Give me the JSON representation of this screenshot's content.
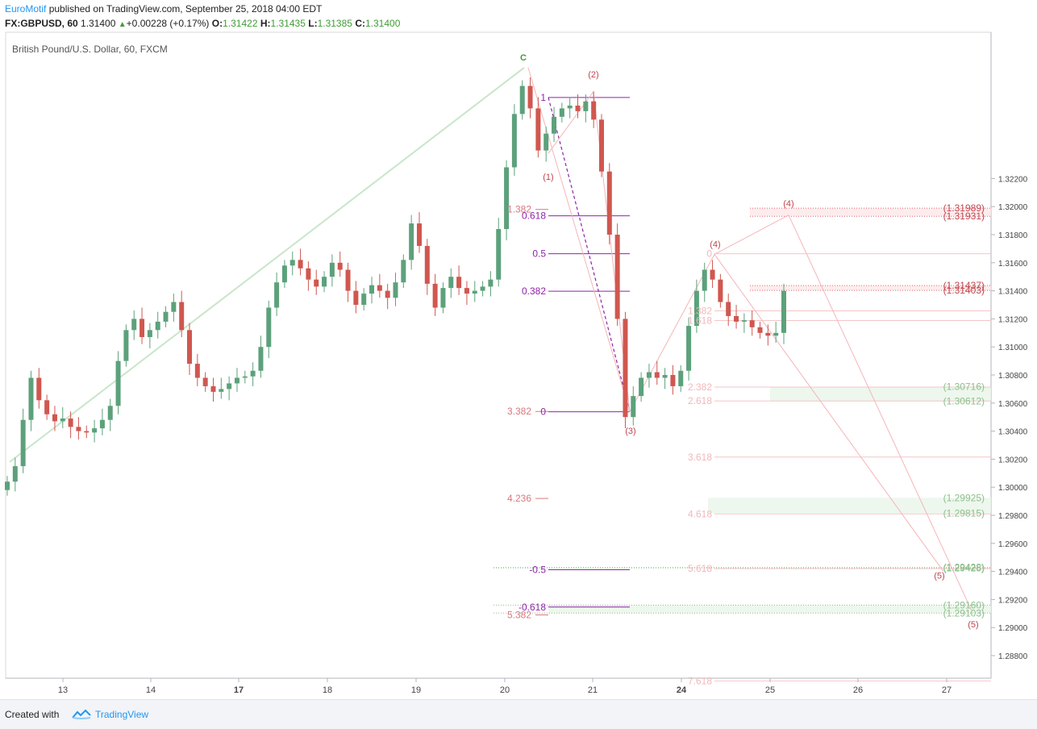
{
  "header": {
    "publisher": "EuroMotif",
    "published_text": "published on TradingView.com, September 25, 2018 04:00 EDT",
    "symbol": "FX:GBPUSD, 60",
    "last_price": "1.31400",
    "change": "+0.00228 (+0.17%)",
    "o_label": "O:",
    "open": "1.31422",
    "h_label": "H:",
    "high": "1.31435",
    "l_label": "L:",
    "low": "1.31385",
    "c_label": "C:",
    "close": "1.31400"
  },
  "footer": {
    "created_with": "Created with",
    "brand": "TradingView"
  },
  "colors": {
    "up": "#5ca17b",
    "down": "#d0574f",
    "fib_purple": "#8e24aa",
    "fib_pink": "#d8787e",
    "wave_pink": "#c0474f",
    "trend_green": "#c8e6c9",
    "green_text": "#8cc08a"
  },
  "chart_data": {
    "type": "candlestick",
    "title": "British Pound/U.S. Dollar, 60, FXCM",
    "x_tick_labels": [
      "13",
      "14",
      "17",
      "18",
      "19",
      "20",
      "21",
      "24",
      "25",
      "26",
      "27"
    ],
    "y_tick_labels": [
      "1.32200",
      "1.32000",
      "1.31800",
      "1.31600",
      "1.31400",
      "1.31200",
      "1.31000",
      "1.30800",
      "1.30600",
      "1.30400",
      "1.30200",
      "1.30000",
      "1.29800",
      "1.29600",
      "1.29400",
      "1.29200",
      "1.29000",
      "1.28800"
    ],
    "y_range": [
      1.2866,
      1.3322
    ],
    "ohlc_anchor_prices": [
      1.3004,
      1.3015,
      1.3048,
      1.3078,
      1.3062,
      1.3052,
      1.3047,
      1.3049,
      1.3043,
      1.304,
      1.3039,
      1.3042,
      1.3048,
      1.3058,
      1.309,
      1.3112,
      1.312,
      1.3107,
      1.3112,
      1.3118,
      1.3125,
      1.3132,
      1.3112,
      1.3088,
      1.3078,
      1.3072,
      1.3068,
      1.307,
      1.3074,
      1.3078,
      1.3079,
      1.3083,
      1.31,
      1.3128,
      1.3146,
      1.3158,
      1.3162,
      1.3156,
      1.3148,
      1.3143,
      1.315,
      1.316,
      1.3155,
      1.314,
      1.313,
      1.3138,
      1.3144,
      1.314,
      1.3135,
      1.3146,
      1.3162,
      1.3188,
      1.3172,
      1.3145,
      1.3128,
      1.3142,
      1.315,
      1.3142,
      1.3138,
      1.314,
      1.3143,
      1.3148,
      1.3184,
      1.3228,
      1.3266,
      1.3286,
      1.327,
      1.324,
      1.3252,
      1.3264,
      1.327,
      1.3272,
      1.3268,
      1.3275,
      1.3262,
      1.3225,
      1.318,
      1.312,
      1.305,
      1.3065,
      1.3078,
      1.3082,
      1.3078,
      1.308,
      1.3072,
      1.3083,
      1.3115,
      1.314,
      1.3155,
      1.3148,
      1.3132,
      1.3122,
      1.3118,
      1.3119,
      1.3114,
      1.311,
      1.3108,
      1.311,
      1.314
    ],
    "elliott_wave_labels": [
      "C",
      "(1)",
      "(2)",
      "(3)",
      "(4)",
      "(4)",
      "(5)",
      "(5)"
    ],
    "fib_purple_levels": [
      {
        "label": "1",
        "price": 1.32778
      },
      {
        "label": "0.618",
        "price": 1.31934
      },
      {
        "label": "0.5",
        "price": 1.31664
      },
      {
        "label": "0.382",
        "price": 1.31397
      },
      {
        "label": "0",
        "price": 1.30538
      },
      {
        "label": "-0.5",
        "price": 1.29412
      },
      {
        "label": "-0.618",
        "price": 1.29146
      }
    ],
    "fib_pink_levels": [
      {
        "label": "1.382",
        "price": 1.3198
      },
      {
        "label": "3.382",
        "price": 1.3054
      },
      {
        "label": "4.236",
        "price": 1.2992
      },
      {
        "label": "5.382",
        "price": 1.2909
      }
    ],
    "fib_pale_levels": [
      {
        "label": "0",
        "price": 1.31664
      },
      {
        "label": "1.382",
        "price": 1.31257
      },
      {
        "label": "1.618",
        "price": 1.31188
      },
      {
        "label": "2.382",
        "price": 1.30714
      },
      {
        "label": "2.618",
        "price": 1.30615
      },
      {
        "label": "3.618",
        "price": 1.30215
      },
      {
        "label": "4.618",
        "price": 1.2981
      },
      {
        "label": "5.618",
        "price": 1.2942
      },
      {
        "label": "7.618",
        "price": 1.2862
      }
    ],
    "target_labels": [
      {
        "text": "(1.31989)",
        "price": 1.31989,
        "color": "#c0474f"
      },
      {
        "text": "(1.31931)",
        "price": 1.31931,
        "color": "#c0474f"
      },
      {
        "text": "(1.31437)",
        "price": 1.31437,
        "color": "#c0474f"
      },
      {
        "text": "(1.31403)",
        "price": 1.31403,
        "color": "#c0474f"
      },
      {
        "text": "(1.30716)",
        "price": 1.30716,
        "color": "#8cc08a"
      },
      {
        "text": "(1.30612)",
        "price": 1.30612,
        "color": "#8cc08a"
      },
      {
        "text": "(1.29925)",
        "price": 1.29925,
        "color": "#8cc08a"
      },
      {
        "text": "(1.29815)",
        "price": 1.29815,
        "color": "#8cc08a"
      },
      {
        "text": "(1.29428)",
        "price": 1.29428,
        "color": "#8cc08a"
      },
      {
        "text": "(1.29425)",
        "price": 1.29425,
        "color": "#8cc08a"
      },
      {
        "text": "(1.29160)",
        "price": 1.2916,
        "color": "#8cc08a"
      },
      {
        "text": "(1.29103)",
        "price": 1.29103,
        "color": "#8cc08a"
      }
    ]
  }
}
